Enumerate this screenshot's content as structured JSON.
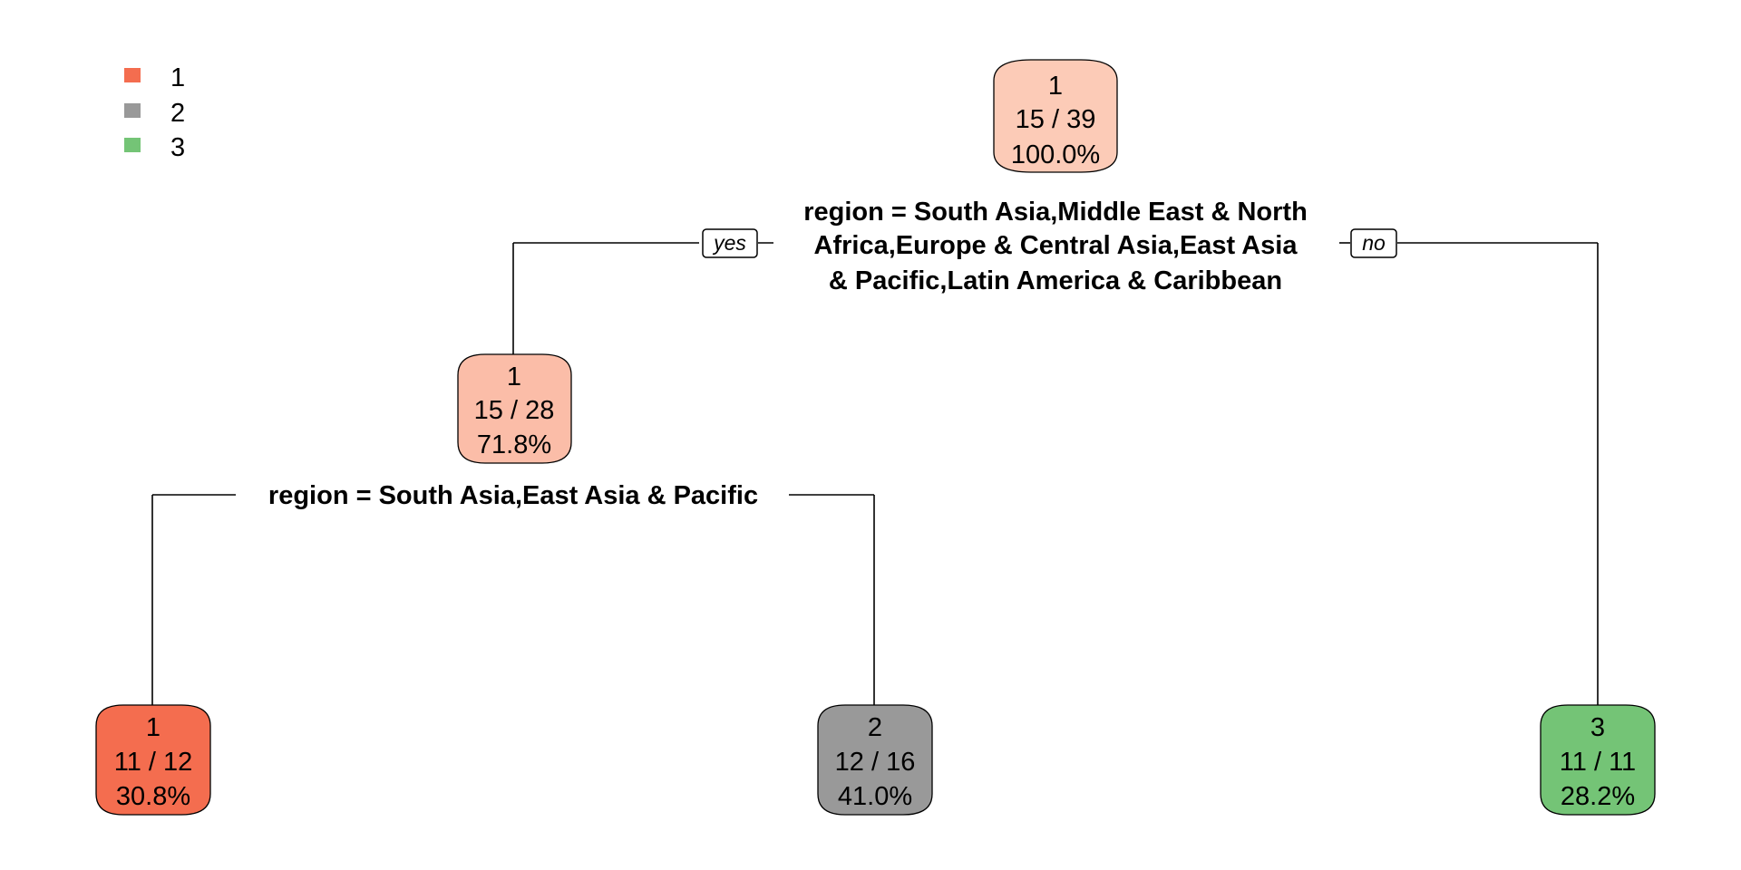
{
  "legend": [
    {
      "label": "1",
      "color": "#f46d4f"
    },
    {
      "label": "2",
      "color": "#999999"
    },
    {
      "label": "3",
      "color": "#74c476"
    }
  ],
  "nodes": {
    "root": {
      "class": "1",
      "counts": "15 / 39",
      "percent": "100.0%",
      "fill": "#fccbb7"
    },
    "left": {
      "class": "1",
      "counts": "15 / 28",
      "percent": "71.8%",
      "fill": "#fbbda8"
    },
    "ll": {
      "class": "1",
      "counts": "11 / 12",
      "percent": "30.8%",
      "fill": "#f46d4f"
    },
    "lr": {
      "class": "2",
      "counts": "12 / 16",
      "percent": "41.0%",
      "fill": "#999999"
    },
    "right": {
      "class": "3",
      "counts": "11 / 11",
      "percent": "28.2%",
      "fill": "#74c476"
    }
  },
  "splits": {
    "root": [
      "region = South Asia,Middle East & North",
      "Africa,Europe & Central Asia,East Asia",
      "& Pacific,Latin America & Caribbean"
    ],
    "left": [
      "region = South Asia,East Asia & Pacific"
    ]
  },
  "edge_labels": {
    "yes": "yes",
    "no": "no"
  }
}
